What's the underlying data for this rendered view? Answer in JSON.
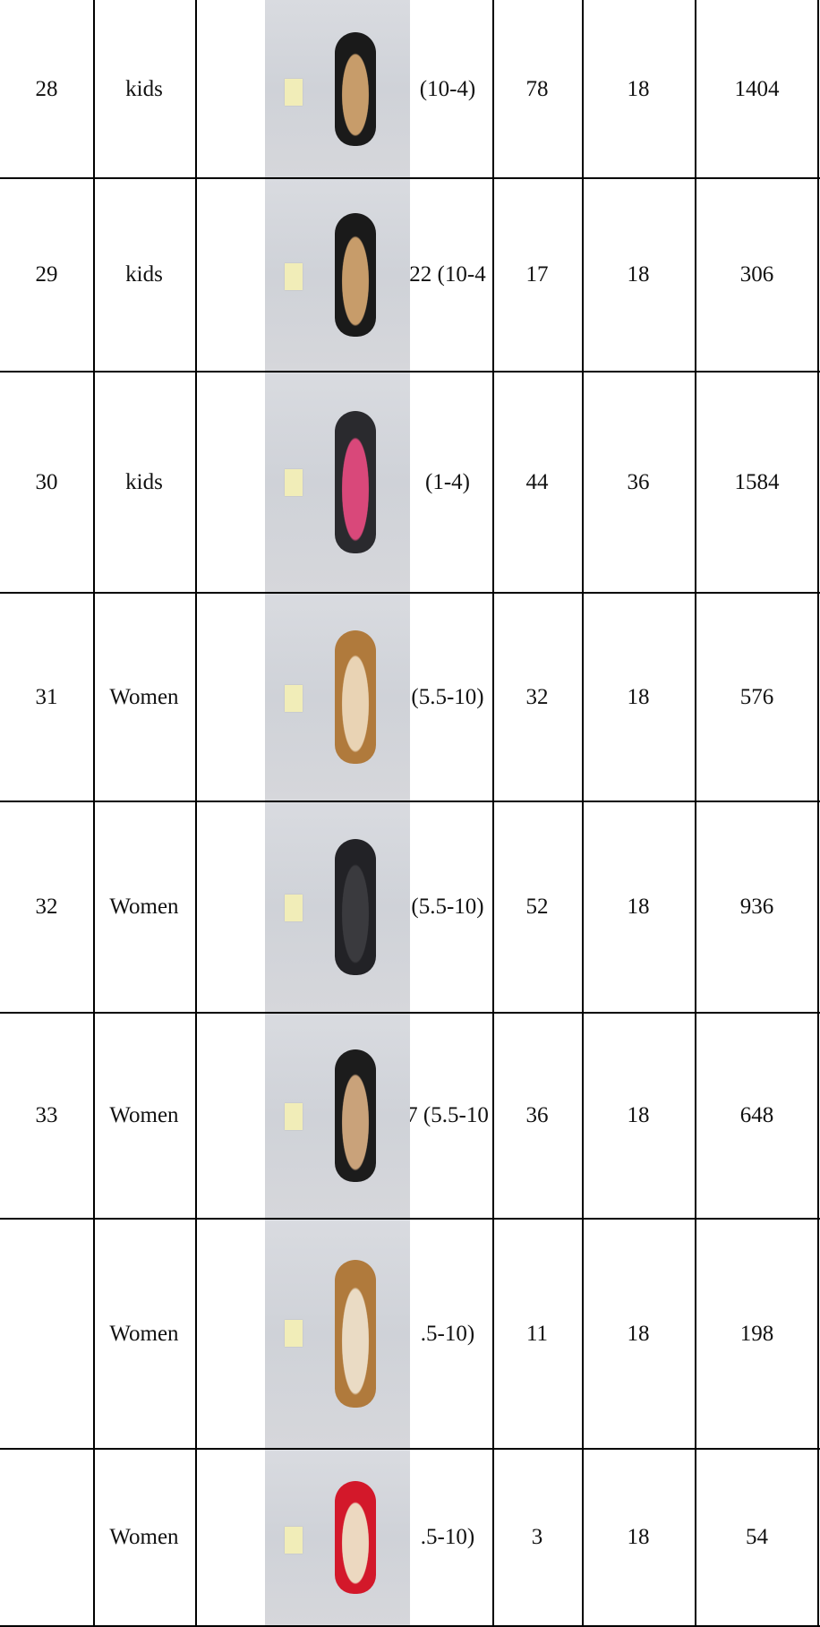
{
  "rows": [
    {
      "no": "28",
      "category": "kids",
      "size": "(10-4)",
      "qty": "78",
      "pairs": "18",
      "total": "1404",
      "photo": {
        "upper": "#1a1a1a",
        "sole": "#c79c6a"
      }
    },
    {
      "no": "29",
      "category": "kids",
      "size": "22  (10-4",
      "qty": "17",
      "pairs": "18",
      "total": "306",
      "photo": {
        "upper": "#1a1a1a",
        "sole": "#c79c6a"
      }
    },
    {
      "no": "30",
      "category": "kids",
      "size": "(1-4)",
      "qty": "44",
      "pairs": "36",
      "total": "1584",
      "photo": {
        "upper": "#2a2a2e",
        "sole": "#d9487a"
      }
    },
    {
      "no": "31",
      "category": "Women",
      "size": "(5.5-10)",
      "qty": "32",
      "pairs": "18",
      "total": "576",
      "photo": {
        "upper": "#b07a3c",
        "sole": "#e9d3b4"
      }
    },
    {
      "no": "32",
      "category": "Women",
      "size": "(5.5-10)",
      "qty": "52",
      "pairs": "18",
      "total": "936",
      "photo": {
        "upper": "#222226",
        "sole": "#3a3a3e"
      }
    },
    {
      "no": "33",
      "category": "Women",
      "size": "7  (5.5-10",
      "qty": "36",
      "pairs": "18",
      "total": "648",
      "photo": {
        "upper": "#1c1c1c",
        "sole": "#c9a27a"
      }
    },
    {
      "no": "",
      "category": "Women",
      "size": ".5-10)",
      "qty": "11",
      "pairs": "18",
      "total": "198",
      "photo": {
        "upper": "#b07a3c",
        "sole": "#eadbc4"
      }
    },
    {
      "no": "",
      "category": "Women",
      "size": ".5-10)",
      "qty": "3",
      "pairs": "18",
      "total": "54",
      "photo": {
        "upper": "#d3182a",
        "sole": "#ecd8c0"
      }
    }
  ]
}
